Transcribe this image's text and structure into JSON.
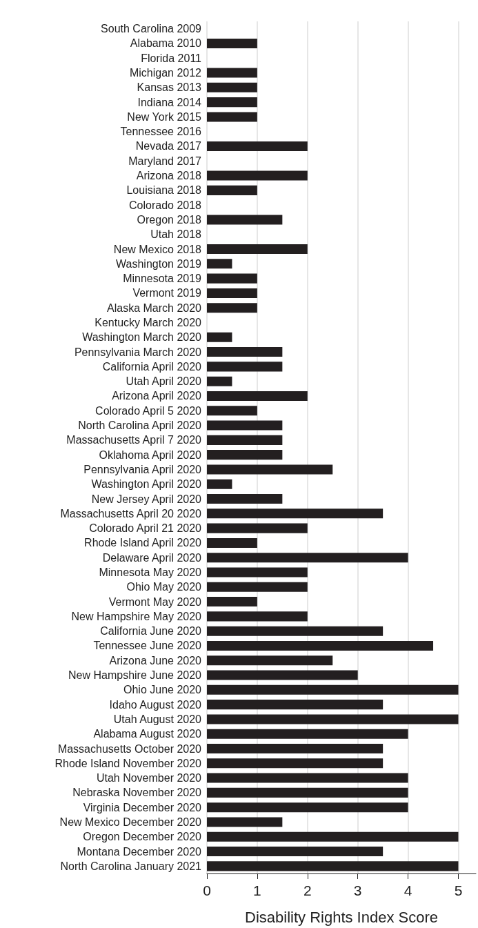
{
  "chart_data": {
    "type": "bar",
    "orientation": "horizontal",
    "xlabel": "Disability Rights Index Score",
    "categories": [
      "South Carolina 2009",
      "Alabama 2010",
      "Florida 2011",
      "Michigan 2012",
      "Kansas 2013",
      "Indiana 2014",
      "New York 2015",
      "Tennessee 2016",
      "Nevada 2017",
      "Maryland 2017",
      "Arizona 2018",
      "Louisiana 2018",
      "Colorado 2018",
      "Oregon 2018",
      "Utah 2018",
      "New Mexico 2018",
      "Washington 2019",
      "Minnesota 2019",
      "Vermont 2019",
      "Alaska March 2020",
      "Kentucky March 2020",
      "Washington March 2020",
      "Pennsylvania March 2020",
      "California April 2020",
      "Utah April 2020",
      "Arizona April 2020",
      "Colorado April 5 2020",
      "North Carolina April 2020",
      "Massachusetts April 7 2020",
      "Oklahoma April 2020",
      "Pennsylvania April 2020",
      "Washington April 2020",
      "New Jersey April 2020",
      "Massachusetts April 20 2020",
      "Colorado April 21 2020",
      "Rhode Island April 2020",
      "Delaware April 2020",
      "Minnesota May 2020",
      "Ohio May 2020",
      "Vermont May 2020",
      "New Hampshire May 2020",
      "California June 2020",
      "Tennessee June 2020",
      "Arizona June 2020",
      "New Hampshire June 2020",
      "Ohio June 2020",
      "Idaho August 2020",
      "Utah August 2020",
      "Alabama August 2020",
      "Massachusetts October 2020",
      "Rhode Island November 2020",
      "Utah November 2020",
      "Nebraska November 2020",
      "Virginia December 2020",
      "New Mexico December 2020",
      "Oregon December 2020",
      "Montana December 2020",
      "North Carolina January 2021"
    ],
    "values": [
      0,
      1,
      0,
      1,
      1,
      1,
      1,
      0,
      2,
      0,
      2,
      1,
      0,
      1.5,
      0,
      2,
      0.5,
      1,
      1,
      1,
      0,
      0.5,
      1.5,
      1.5,
      0.5,
      2,
      1,
      1.5,
      1.5,
      1.5,
      2.5,
      0.5,
      1.5,
      3.5,
      2,
      1,
      4,
      2,
      2,
      1,
      2,
      3.5,
      4.5,
      2.5,
      3,
      5,
      3.5,
      5,
      4,
      3.5,
      3.5,
      4,
      4,
      4,
      1.5,
      5,
      3.5,
      5
    ],
    "color": "#231f20",
    "xlim": [
      0,
      5.35
    ],
    "xticks": [
      0,
      1,
      2,
      3,
      4,
      5
    ],
    "grid": "x"
  }
}
